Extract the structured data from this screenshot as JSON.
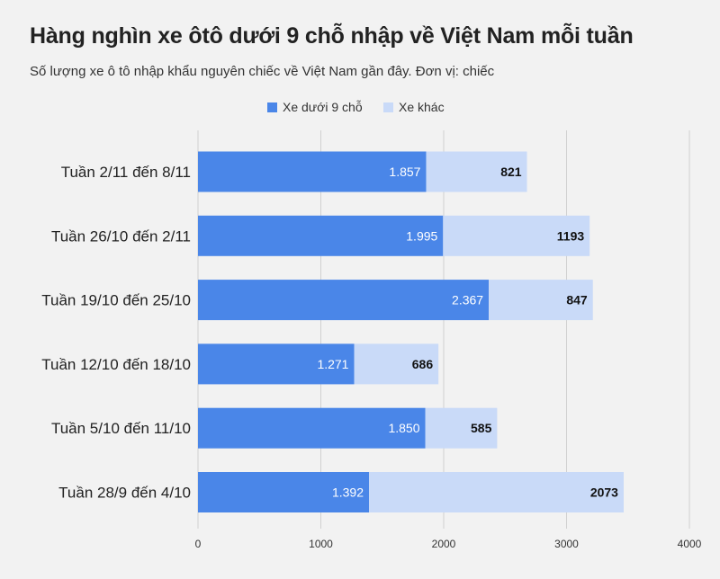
{
  "title": "Hàng nghìn xe ôtô dưới 9 chỗ nhập về Việt Nam mỗi tuần",
  "subtitle": "Số lượng xe ô tô nhập khẩu nguyên chiếc về Việt Nam gần đây. Đơn vị: chiếc",
  "colors": {
    "series1": "#4a86e8",
    "series2": "#c9daf8",
    "grid": "#d0d0d0",
    "background": "#f2f2f2"
  },
  "chart_data": {
    "type": "bar",
    "orientation": "horizontal",
    "stacked": true,
    "categories": [
      "Tuần 2/11 đến 8/11",
      "Tuần 26/10 đến 2/11",
      "Tuần 19/10 đến 25/10",
      "Tuần 12/10 đến 18/10",
      "Tuần 5/10 đến 11/10",
      "Tuần 28/9 đến 4/10"
    ],
    "series": [
      {
        "name": "Xe dưới 9 chỗ",
        "values": [
          1857,
          1995,
          2367,
          1271,
          1850,
          1392
        ],
        "labels": [
          "1.857",
          "1.995",
          "2.367",
          "1.271",
          "1.850",
          "1.392"
        ]
      },
      {
        "name": "Xe khác",
        "values": [
          821,
          1193,
          847,
          686,
          585,
          2073
        ],
        "labels": [
          "821",
          "1193",
          "847",
          "686",
          "585",
          "2073"
        ]
      }
    ],
    "xlim": [
      0,
      4000
    ],
    "xticks": [
      0,
      1000,
      2000,
      3000,
      4000
    ],
    "xtick_labels": [
      "0",
      "1000",
      "2000",
      "3000",
      "4000"
    ],
    "grid": true,
    "legend_position": "top"
  }
}
